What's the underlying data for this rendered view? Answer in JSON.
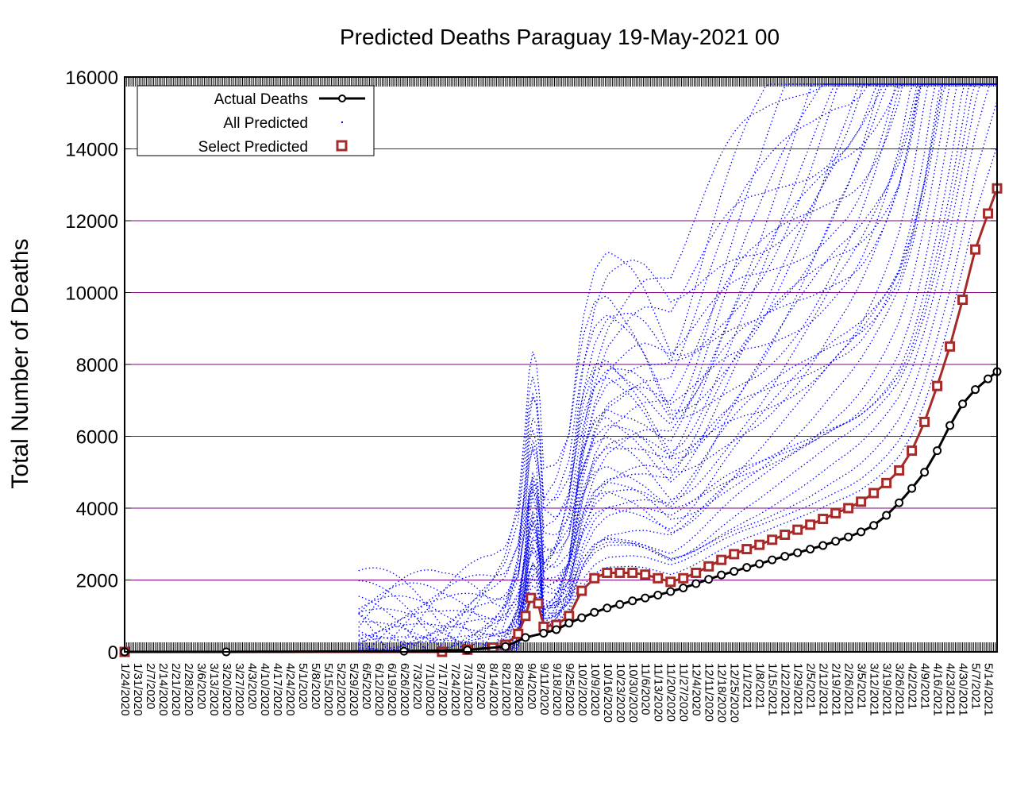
{
  "chart_data": {
    "type": "line",
    "title": "Predicted Deaths Paraguay 19-May-2021 00",
    "xlabel": "",
    "ylabel": "Total Number of Deaths",
    "ylim": [
      0,
      16000
    ],
    "yticks": [
      0,
      2000,
      4000,
      6000,
      8000,
      10000,
      12000,
      14000,
      16000
    ],
    "grid": "horizontal",
    "legend_position": "top-left",
    "x_tick_labels": [
      "1/24/2020",
      "1/31/2020",
      "2/7/2020",
      "2/14/2020",
      "2/21/2020",
      "2/28/2020",
      "3/6/2020",
      "3/13/2020",
      "3/20/2020",
      "3/27/2020",
      "4/3/2020",
      "4/10/2020",
      "4/17/2020",
      "4/24/2020",
      "5/1/2020",
      "5/8/2020",
      "5/15/2020",
      "5/22/2020",
      "5/29/2020",
      "6/5/2020",
      "6/12/2020",
      "6/19/2020",
      "6/26/2020",
      "7/3/2020",
      "7/10/2020",
      "7/17/2020",
      "7/24/2020",
      "7/31/2020",
      "8/7/2020",
      "8/14/2020",
      "8/21/2020",
      "8/28/2020",
      "9/4/2020",
      "9/11/2020",
      "9/18/2020",
      "9/25/2020",
      "10/2/2020",
      "10/9/2020",
      "10/16/2020",
      "10/23/2020",
      "10/30/2020",
      "11/6/2020",
      "11/13/2020",
      "11/20/2020",
      "11/27/2020",
      "12/4/2020",
      "12/11/2020",
      "12/18/2020",
      "12/25/2020",
      "1/1/2021",
      "1/8/2021",
      "1/15/2021",
      "1/22/2021",
      "1/29/2021",
      "2/5/2021",
      "2/12/2021",
      "2/19/2021",
      "2/26/2021",
      "3/5/2021",
      "3/12/2021",
      "3/19/2021",
      "3/26/2021",
      "4/2/2021",
      "4/9/2021",
      "4/16/2021",
      "4/23/2021",
      "4/30/2021",
      "5/7/2021",
      "5/14/2021"
    ],
    "series": [
      {
        "name": "Actual Deaths",
        "color": "#000000",
        "marker": "circle",
        "x": [
          "1/24/2020",
          "3/20/2020",
          "6/26/2020",
          "7/31/2020",
          "8/21/2020",
          "9/1/2020",
          "9/11/2020",
          "9/18/2020",
          "9/25/2020",
          "10/2/2020",
          "10/9/2020",
          "10/16/2020",
          "10/23/2020",
          "10/30/2020",
          "11/6/2020",
          "11/13/2020",
          "11/20/2020",
          "11/27/2020",
          "12/4/2020",
          "12/11/2020",
          "12/18/2020",
          "12/25/2020",
          "1/1/2021",
          "1/8/2021",
          "1/15/2021",
          "1/22/2021",
          "1/29/2021",
          "2/5/2021",
          "2/12/2021",
          "2/19/2021",
          "2/26/2021",
          "3/5/2021",
          "3/12/2021",
          "3/19/2021",
          "3/26/2021",
          "4/2/2021",
          "4/9/2021",
          "4/16/2021",
          "4/23/2021",
          "4/30/2021",
          "5/7/2021",
          "5/14/2021",
          "5/19/2021"
        ],
        "y": [
          0,
          0,
          20,
          50,
          150,
          400,
          520,
          620,
          800,
          950,
          1100,
          1220,
          1320,
          1420,
          1500,
          1580,
          1680,
          1780,
          1900,
          2020,
          2140,
          2240,
          2350,
          2450,
          2560,
          2660,
          2760,
          2860,
          2960,
          3080,
          3200,
          3340,
          3520,
          3800,
          4150,
          4550,
          5000,
          5600,
          6300,
          6900,
          7300,
          7600,
          7800
        ]
      },
      {
        "name": "Select Predicted",
        "color": "#a52a2a",
        "marker": "square",
        "x": [
          "1/24/2020",
          "7/17/2020",
          "7/31/2020",
          "8/14/2020",
          "8/21/2020",
          "8/28/2020",
          "9/1/2020",
          "9/4/2020",
          "9/8/2020",
          "9/11/2020",
          "9/18/2020",
          "9/25/2020",
          "10/2/2020",
          "10/9/2020",
          "10/16/2020",
          "10/23/2020",
          "10/30/2020",
          "11/6/2020",
          "11/13/2020",
          "11/20/2020",
          "11/27/2020",
          "12/4/2020",
          "12/11/2020",
          "12/18/2020",
          "12/25/2020",
          "1/1/2021",
          "1/8/2021",
          "1/15/2021",
          "1/22/2021",
          "1/29/2021",
          "2/5/2021",
          "2/12/2021",
          "2/19/2021",
          "2/26/2021",
          "3/5/2021",
          "3/12/2021",
          "3/19/2021",
          "3/26/2021",
          "4/2/2021",
          "4/9/2021",
          "4/16/2021",
          "4/23/2021",
          "4/30/2021",
          "5/7/2021",
          "5/14/2021",
          "5/19/2021"
        ],
        "y": [
          0,
          0,
          60,
          120,
          200,
          500,
          1000,
          1500,
          1350,
          700,
          750,
          1000,
          1700,
          2050,
          2200,
          2200,
          2200,
          2150,
          2050,
          1950,
          2050,
          2200,
          2380,
          2560,
          2720,
          2860,
          2980,
          3120,
          3260,
          3400,
          3540,
          3700,
          3860,
          4000,
          4180,
          4420,
          4700,
          5050,
          5600,
          6400,
          7400,
          8500,
          9800,
          11200,
          12200,
          12900
        ]
      }
    ]
  },
  "legend": {
    "actual_label": "Actual Deaths",
    "all_label": "All Predicted",
    "select_label": "Select Predicted"
  },
  "colors": {
    "actual": "#000000",
    "all_predicted": "#0000ff",
    "select_predicted": "#a52a2a",
    "grid": "#800080"
  }
}
